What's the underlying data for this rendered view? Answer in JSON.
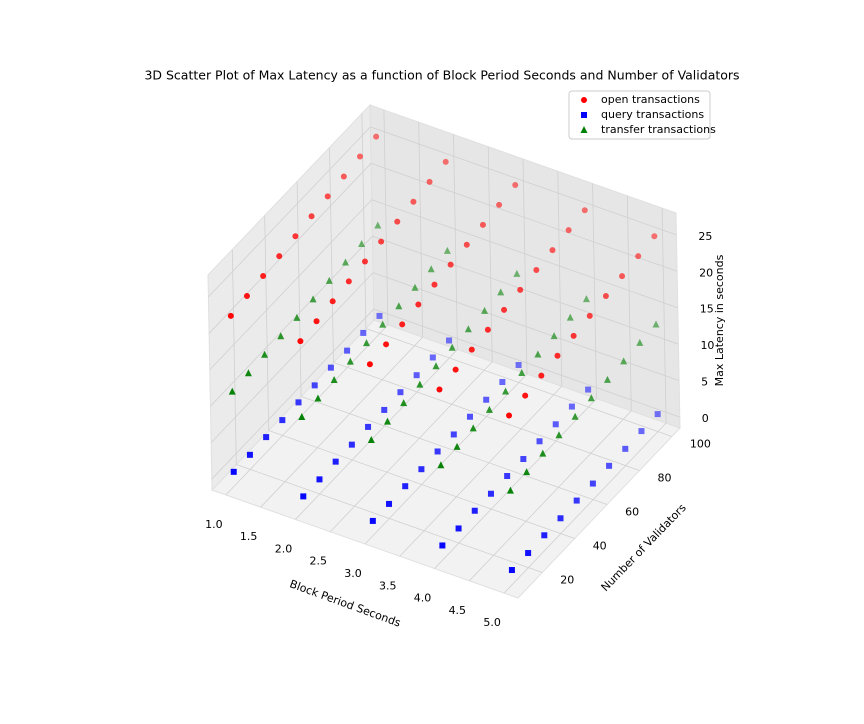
{
  "chart_data": {
    "type": "scatter3d",
    "title": "3D Scatter Plot of Max Latency as a function of Block Period Seconds and Number of Validators",
    "xlabel": "Block Period Seconds",
    "ylabel": "Number of Validators",
    "zlabel": "Max Latency in seconds",
    "x": [
      1,
      1,
      1,
      1,
      1,
      1,
      1,
      1,
      1,
      1,
      2,
      2,
      2,
      2,
      2,
      2,
      2,
      2,
      2,
      2,
      3,
      3,
      3,
      3,
      3,
      3,
      3,
      3,
      3,
      3,
      4,
      4,
      4,
      4,
      4,
      4,
      4,
      4,
      4,
      4,
      5,
      5,
      5,
      5,
      5,
      5,
      5,
      5,
      5,
      5
    ],
    "y": [
      10,
      20,
      30,
      40,
      50,
      60,
      70,
      80,
      90,
      100,
      10,
      20,
      30,
      40,
      50,
      60,
      70,
      80,
      90,
      100,
      10,
      20,
      30,
      40,
      50,
      60,
      70,
      80,
      90,
      100,
      10,
      20,
      30,
      40,
      50,
      60,
      70,
      80,
      90,
      100,
      10,
      20,
      30,
      40,
      50,
      60,
      70,
      80,
      90,
      100
    ],
    "series": [
      {
        "name": "open transactions",
        "color": "#ff0000",
        "marker": "circle",
        "values": [
          21.9,
          22.3,
          22.7,
          23.1,
          23.5,
          23.9,
          24.3,
          24.7,
          25.1,
          25.5,
          21.8,
          22.2,
          22.6,
          23.0,
          23.4,
          23.8,
          24.2,
          24.6,
          25.0,
          25.4,
          22.0,
          22.4,
          22.8,
          23.2,
          23.6,
          24.0,
          24.4,
          24.8,
          25.2,
          25.6,
          21.9,
          22.3,
          22.7,
          23.1,
          23.5,
          23.9,
          24.3,
          24.7,
          25.1,
          25.5,
          21.7,
          22.1,
          22.5,
          22.9,
          23.3,
          23.7,
          24.1,
          24.5,
          24.9,
          25.3
        ]
      },
      {
        "name": "query transactions",
        "color": "#0000ff",
        "marker": "square",
        "values": [
          0.5,
          0.5,
          0.6,
          0.6,
          0.7,
          0.7,
          0.8,
          0.8,
          0.9,
          0.9,
          0.5,
          0.5,
          0.6,
          0.6,
          0.7,
          0.7,
          0.8,
          0.8,
          0.9,
          0.9,
          0.5,
          0.5,
          0.6,
          0.6,
          0.7,
          0.7,
          0.8,
          0.8,
          0.9,
          0.9,
          0.5,
          0.5,
          0.6,
          0.6,
          0.7,
          0.7,
          0.8,
          0.8,
          0.9,
          0.9,
          0.5,
          0.5,
          0.6,
          0.6,
          0.7,
          0.7,
          0.8,
          0.8,
          0.9,
          0.9
        ]
      },
      {
        "name": "transfer transactions",
        "color": "#008000",
        "marker": "triangle",
        "values": [
          11.5,
          11.7,
          11.9,
          12.1,
          12.3,
          12.5,
          12.7,
          12.9,
          13.1,
          13.3,
          11.4,
          11.6,
          11.8,
          12.0,
          12.2,
          12.4,
          12.6,
          12.8,
          13.0,
          13.2,
          11.6,
          11.8,
          12.0,
          12.2,
          12.4,
          12.6,
          12.8,
          13.0,
          13.2,
          13.4,
          11.5,
          11.7,
          11.9,
          12.1,
          12.3,
          12.5,
          12.7,
          12.9,
          13.1,
          13.3,
          11.4,
          11.6,
          11.8,
          12.0,
          12.2,
          12.4,
          12.6,
          12.8,
          13.0,
          13.2
        ]
      }
    ],
    "xlim": [
      0.8,
      5.2
    ],
    "ylim": [
      5,
      105
    ],
    "zlim": [
      -1.5,
      28
    ],
    "xticks": [
      {
        "value": 1,
        "label": "1.0"
      },
      1.5,
      {
        "value": 2,
        "label": "2.0"
      },
      2.5,
      {
        "value": 3,
        "label": "3.0"
      },
      3.5,
      {
        "value": 4,
        "label": "4.0"
      },
      4.5,
      {
        "value": 5,
        "label": "5.0"
      }
    ],
    "yticks": [
      20,
      40,
      60,
      80,
      100
    ],
    "zticks": [
      0,
      5,
      10,
      15,
      20,
      25
    ],
    "grid": true,
    "legend": "upper right"
  }
}
